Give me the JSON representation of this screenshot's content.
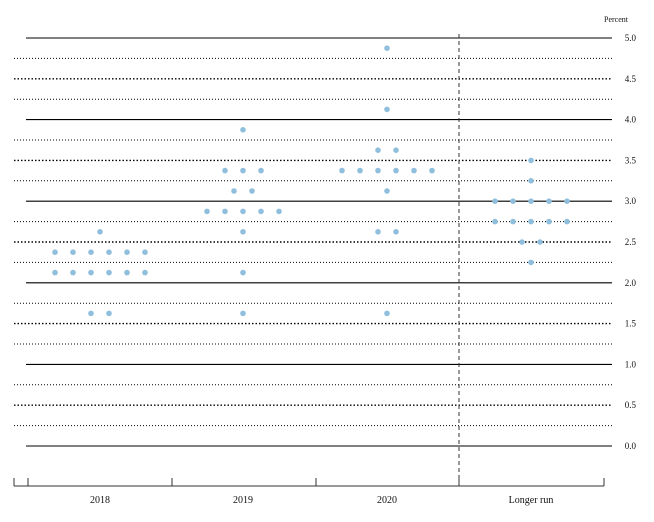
{
  "chart_data": {
    "type": "scatter",
    "unit_label": "Percent",
    "categories": [
      "2018",
      "2019",
      "2020",
      "Longer run"
    ],
    "ylim": [
      0,
      5
    ],
    "yticks": [
      "5.0",
      "4.5",
      "4.0",
      "3.5",
      "3.0",
      "2.5",
      "2.0",
      "1.5",
      "1.0",
      "0.5",
      "0.0"
    ],
    "grid": true,
    "dot_color": "#8fbfdc",
    "points": {
      "2018": [
        2.625,
        2.375,
        2.375,
        2.375,
        2.375,
        2.375,
        2.375,
        2.125,
        2.125,
        2.125,
        2.125,
        2.125,
        2.125,
        1.625,
        1.625
      ],
      "2019": [
        3.875,
        3.375,
        3.375,
        3.375,
        3.125,
        3.125,
        2.875,
        2.875,
        2.875,
        2.875,
        2.875,
        2.625,
        2.125,
        1.625
      ],
      "2020": [
        4.875,
        4.125,
        3.625,
        3.625,
        3.375,
        3.375,
        3.375,
        3.375,
        3.375,
        3.375,
        3.125,
        2.625,
        2.625,
        1.625
      ],
      "Longer run": [
        3.5,
        3.25,
        3.0,
        3.0,
        3.0,
        3.0,
        3.0,
        2.75,
        2.75,
        2.75,
        2.75,
        2.75,
        2.5,
        2.5,
        2.25
      ]
    }
  }
}
